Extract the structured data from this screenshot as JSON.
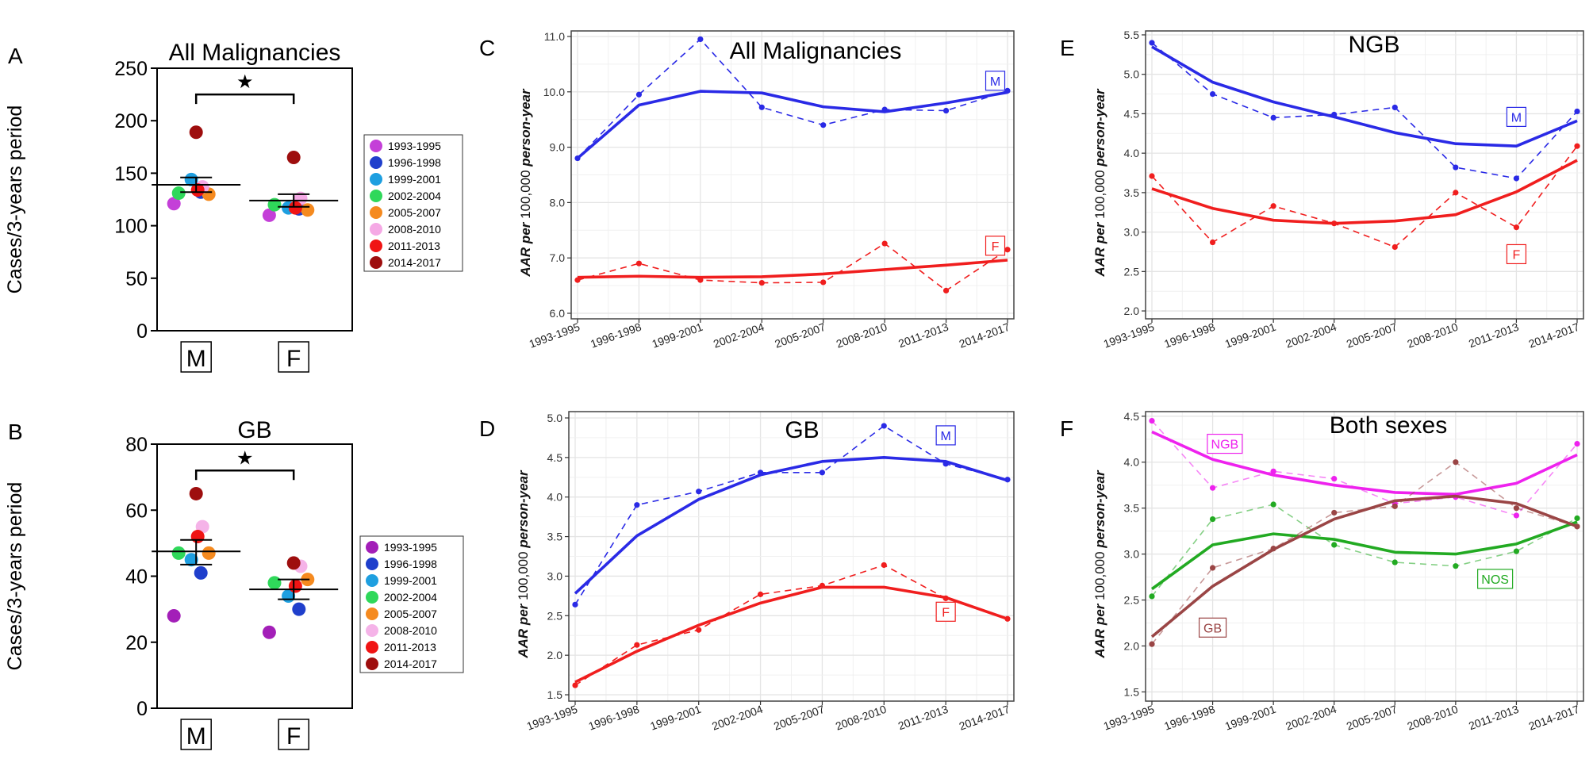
{
  "figure": {
    "panel_letters": [
      "A",
      "B",
      "C",
      "D",
      "E",
      "F"
    ]
  },
  "colors": {
    "male": "#2a2ae6",
    "female": "#f01e1e",
    "ngb": "#ee22ee",
    "nos": "#22aa22",
    "gb_both": "#9a4545",
    "grid": "#e4e4e4"
  },
  "chart_data": [
    {
      "id": "A",
      "type": "scatter",
      "title": "All Malignancies",
      "ylabel": "Cases/3-years period",
      "ylim": [
        0,
        250
      ],
      "yticks": [
        0,
        50,
        100,
        150,
        200,
        250
      ],
      "categories": [
        "M",
        "F"
      ],
      "significance": "★",
      "groups": [
        {
          "name": "M",
          "mean": 139,
          "err_low": 132,
          "err_high": 146,
          "points": [
            {
              "period": "1993-1995",
              "value": 121
            },
            {
              "period": "1996-1998",
              "value": 132
            },
            {
              "period": "1999-2001",
              "value": 144
            },
            {
              "period": "2002-2004",
              "value": 131
            },
            {
              "period": "2005-2007",
              "value": 130
            },
            {
              "period": "2008-2010",
              "value": 137
            },
            {
              "period": "2011-2013",
              "value": 134
            },
            {
              "period": "2014-2017",
              "value": 189
            }
          ]
        },
        {
          "name": "F",
          "mean": 124,
          "err_low": 118,
          "err_high": 130,
          "points": [
            {
              "period": "1993-1995",
              "value": 110
            },
            {
              "period": "1996-1998",
              "value": 116
            },
            {
              "period": "1999-2001",
              "value": 117
            },
            {
              "period": "2002-2004",
              "value": 120
            },
            {
              "period": "2005-2007",
              "value": 115
            },
            {
              "period": "2008-2010",
              "value": 126
            },
            {
              "period": "2011-2013",
              "value": 117
            },
            {
              "period": "2014-2017",
              "value": 165
            }
          ]
        }
      ],
      "legend": [
        {
          "label": "1993-1995",
          "color": "#c43fd8"
        },
        {
          "label": "1996-1998",
          "color": "#1f3fcc"
        },
        {
          "label": "1999-2001",
          "color": "#1e9fe0"
        },
        {
          "label": "2002-2004",
          "color": "#2fd85a"
        },
        {
          "label": "2005-2007",
          "color": "#f58a1f"
        },
        {
          "label": "2008-2010",
          "color": "#f5a9e5"
        },
        {
          "label": "2011-2013",
          "color": "#f01414"
        },
        {
          "label": "2014-2017",
          "color": "#9e0e0e"
        }
      ]
    },
    {
      "id": "B",
      "type": "scatter",
      "title": "GB",
      "ylabel": "Cases/3-years period",
      "ylim": [
        0,
        80
      ],
      "yticks": [
        0,
        20,
        40,
        60,
        80
      ],
      "categories": [
        "M",
        "F"
      ],
      "significance": "★",
      "groups": [
        {
          "name": "M",
          "mean": 47.5,
          "err_low": 43.5,
          "err_high": 51,
          "points": [
            {
              "period": "1993-1995",
              "value": 28
            },
            {
              "period": "1996-1998",
              "value": 41
            },
            {
              "period": "1999-2001",
              "value": 45
            },
            {
              "period": "2002-2004",
              "value": 47
            },
            {
              "period": "2005-2007",
              "value": 47
            },
            {
              "period": "2008-2010",
              "value": 55
            },
            {
              "period": "2011-2013",
              "value": 52
            },
            {
              "period": "2014-2017",
              "value": 65
            }
          ]
        },
        {
          "name": "F",
          "mean": 36,
          "err_low": 33,
          "err_high": 39,
          "points": [
            {
              "period": "1993-1995",
              "value": 23
            },
            {
              "period": "1996-1998",
              "value": 30
            },
            {
              "period": "1999-2001",
              "value": 34
            },
            {
              "period": "2002-2004",
              "value": 38
            },
            {
              "period": "2005-2007",
              "value": 39
            },
            {
              "period": "2008-2010",
              "value": 43
            },
            {
              "period": "2011-2013",
              "value": 37
            },
            {
              "period": "2014-2017",
              "value": 44
            }
          ]
        }
      ],
      "legend": [
        {
          "label": "1993-1995",
          "color": "#a31fb8"
        },
        {
          "label": "1996-1998",
          "color": "#1f3fcc"
        },
        {
          "label": "1999-2001",
          "color": "#1e9fe0"
        },
        {
          "label": "2002-2004",
          "color": "#2fd85a"
        },
        {
          "label": "2005-2007",
          "color": "#f58a1f"
        },
        {
          "label": "2008-2010",
          "color": "#f5b3e8"
        },
        {
          "label": "2011-2013",
          "color": "#f01414"
        },
        {
          "label": "2014-2017",
          "color": "#9e0e0e"
        }
      ]
    },
    {
      "id": "C",
      "type": "line",
      "title": "All Malignancies",
      "ylabel_italic": "AAR per ",
      "ylabel_plain": "100,000 ",
      "ylabel_italic2": "person-year",
      "ylim": [
        5.9,
        11.1
      ],
      "yticks": [
        6.0,
        7.0,
        8.0,
        9.0,
        10.0,
        11.0
      ],
      "ydec": 1,
      "categories": [
        "1993-1995",
        "1996-1998",
        "1999-2001",
        "2002-2004",
        "2005-2007",
        "2008-2010",
        "2011-2013",
        "2014-2017"
      ],
      "series": [
        {
          "name": "M",
          "color": "#2a2ae6",
          "label_pos": [
            6.8,
            10.2
          ],
          "observed": [
            8.8,
            9.95,
            10.95,
            9.72,
            9.4,
            9.68,
            9.66,
            10.02
          ],
          "trend": [
            8.8,
            9.76,
            10.01,
            9.98,
            9.73,
            9.64,
            9.8,
            9.99
          ]
        },
        {
          "name": "F",
          "color": "#f01e1e",
          "label_pos": [
            6.8,
            7.22
          ],
          "observed": [
            6.6,
            6.9,
            6.6,
            6.55,
            6.56,
            7.26,
            6.41,
            7.15
          ],
          "trend": [
            6.65,
            6.67,
            6.65,
            6.66,
            6.71,
            6.79,
            6.87,
            6.96
          ]
        }
      ]
    },
    {
      "id": "D",
      "type": "line",
      "title": "GB",
      "ylabel_italic": "AAR per ",
      "ylabel_plain": "100,000 ",
      "ylabel_italic2": "person-year",
      "ylim": [
        1.42,
        5.08
      ],
      "yticks": [
        1.5,
        2.0,
        2.5,
        3.0,
        3.5,
        4.0,
        4.5,
        5.0
      ],
      "ydec": 1,
      "categories": [
        "1993-1995",
        "1996-1998",
        "1999-2001",
        "2002-2004",
        "2005-2007",
        "2008-2010",
        "2011-2013",
        "2014-2017"
      ],
      "series": [
        {
          "name": "M",
          "color": "#2a2ae6",
          "label_pos": [
            6.0,
            4.78
          ],
          "observed": [
            2.64,
            3.9,
            4.07,
            4.31,
            4.31,
            4.9,
            4.42,
            4.22
          ],
          "trend": [
            2.78,
            3.51,
            3.97,
            4.28,
            4.45,
            4.5,
            4.45,
            4.21
          ]
        },
        {
          "name": "F",
          "color": "#f01e1e",
          "label_pos": [
            6.0,
            2.55
          ],
          "observed": [
            1.62,
            2.13,
            2.32,
            2.77,
            2.88,
            3.14,
            2.72,
            2.46
          ],
          "trend": [
            1.66,
            2.05,
            2.38,
            2.66,
            2.86,
            2.86,
            2.73,
            2.46
          ]
        }
      ]
    },
    {
      "id": "E",
      "type": "line",
      "title": "NGB",
      "ylabel_italic": "AAR per ",
      "ylabel_plain": "100,000 ",
      "ylabel_italic2": "person-year",
      "ylim": [
        1.9,
        5.55
      ],
      "yticks": [
        2.0,
        2.5,
        3.0,
        3.5,
        4.0,
        4.5,
        5.0,
        5.5
      ],
      "ydec": 1,
      "categories": [
        "1993-1995",
        "1996-1998",
        "1999-2001",
        "2002-2004",
        "2005-2007",
        "2008-2010",
        "2011-2013",
        "2014-2017"
      ],
      "series": [
        {
          "name": "M",
          "color": "#2a2ae6",
          "label_pos": [
            6.0,
            4.46
          ],
          "observed": [
            5.4,
            4.75,
            4.45,
            4.49,
            4.58,
            3.82,
            3.68,
            4.53
          ],
          "trend": [
            5.35,
            4.9,
            4.65,
            4.46,
            4.26,
            4.12,
            4.09,
            4.41
          ]
        },
        {
          "name": "F",
          "color": "#f01e1e",
          "label_pos": [
            6.0,
            2.72
          ],
          "observed": [
            3.71,
            2.87,
            3.33,
            3.11,
            2.81,
            3.5,
            3.06,
            4.09
          ],
          "trend": [
            3.55,
            3.3,
            3.15,
            3.11,
            3.14,
            3.22,
            3.51,
            3.91
          ]
        }
      ]
    },
    {
      "id": "F",
      "type": "line",
      "title": "Both sexes",
      "ylabel_italic": "AAR per ",
      "ylabel_plain": "100,000 ",
      "ylabel_italic2": "person-year",
      "ylim": [
        1.4,
        4.55
      ],
      "yticks": [
        1.5,
        2.0,
        2.5,
        3.0,
        3.5,
        4.0,
        4.5
      ],
      "ydec": 1,
      "categories": [
        "1993-1995",
        "1996-1998",
        "1999-2001",
        "2002-2004",
        "2005-2007",
        "2008-2010",
        "2011-2013",
        "2014-2017"
      ],
      "series": [
        {
          "name": "NGB",
          "color": "#ee22ee",
          "label_pos": [
            1.2,
            4.2
          ],
          "observed": [
            4.45,
            3.72,
            3.9,
            3.82,
            3.55,
            3.62,
            3.42,
            4.2
          ],
          "trend": [
            4.33,
            4.03,
            3.86,
            3.75,
            3.67,
            3.65,
            3.77,
            4.08
          ]
        },
        {
          "name": "NOS",
          "color": "#22aa22",
          "label_pos": [
            5.65,
            2.73
          ],
          "observed": [
            2.54,
            3.38,
            3.54,
            3.1,
            2.91,
            2.87,
            3.03,
            3.39
          ],
          "trend": [
            2.62,
            3.1,
            3.22,
            3.16,
            3.02,
            3.0,
            3.11,
            3.35
          ]
        },
        {
          "name": "GB",
          "color": "#9a4545",
          "label_pos": [
            1.0,
            2.2
          ],
          "observed": [
            2.02,
            2.85,
            3.06,
            3.45,
            3.52,
            4.0,
            3.5,
            3.3
          ],
          "trend": [
            2.1,
            2.65,
            3.05,
            3.38,
            3.58,
            3.63,
            3.55,
            3.3
          ]
        }
      ]
    }
  ]
}
